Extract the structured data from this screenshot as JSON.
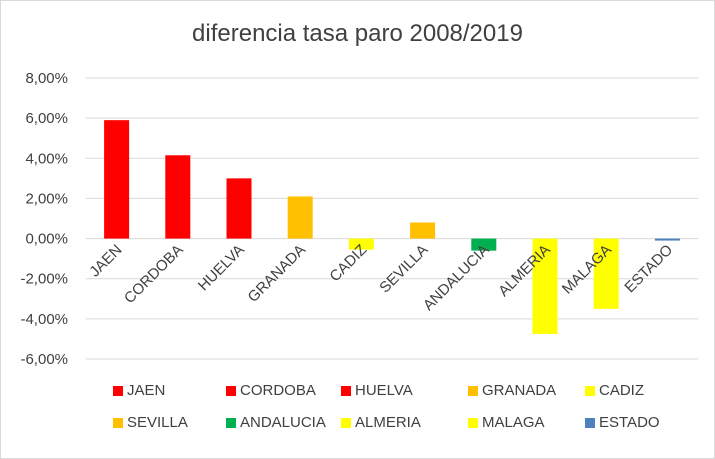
{
  "chart_data": {
    "type": "bar",
    "title": "diferencia tasa paro 2008/2019",
    "xlabel": "",
    "ylabel": "",
    "ylim": [
      -6,
      8
    ],
    "yticks": [
      8,
      6,
      4,
      2,
      0,
      -2,
      -4,
      -6
    ],
    "ytick_labels": [
      "8,00%",
      "6,00%",
      "4,00%",
      "2,00%",
      "0,00%",
      "-2,00%",
      "-4,00%",
      "-6,00%"
    ],
    "grid": true,
    "legend_position": "bottom",
    "categories": [
      "JAEN",
      "CORDOBA",
      "HUELVA",
      "GRANADA",
      "CADIZ",
      "SEVILLA",
      "ANDALUCIA",
      "ALMERIA",
      "MALAGA",
      "ESTADO"
    ],
    "values": [
      5.9,
      4.15,
      3.0,
      2.1,
      -0.55,
      0.8,
      -0.6,
      -4.75,
      -3.5,
      -0.1
    ],
    "value_unit": "%",
    "colors": [
      "#ff0000",
      "#ff0000",
      "#ff0000",
      "#ffc000",
      "#ffff00",
      "#ffc000",
      "#00b050",
      "#ffff00",
      "#ffff00",
      "#4f81bd"
    ],
    "legend": [
      {
        "label": "JAEN",
        "color": "#ff0000"
      },
      {
        "label": "CORDOBA",
        "color": "#ff0000"
      },
      {
        "label": "HUELVA",
        "color": "#ff0000"
      },
      {
        "label": "GRANADA",
        "color": "#ffc000"
      },
      {
        "label": "CADIZ",
        "color": "#ffff00"
      },
      {
        "label": "SEVILLA",
        "color": "#ffc000"
      },
      {
        "label": "ANDALUCIA",
        "color": "#00b050"
      },
      {
        "label": "ALMERIA",
        "color": "#ffff00"
      },
      {
        "label": "MALAGA",
        "color": "#ffff00"
      },
      {
        "label": "ESTADO",
        "color": "#4f81bd"
      }
    ]
  }
}
